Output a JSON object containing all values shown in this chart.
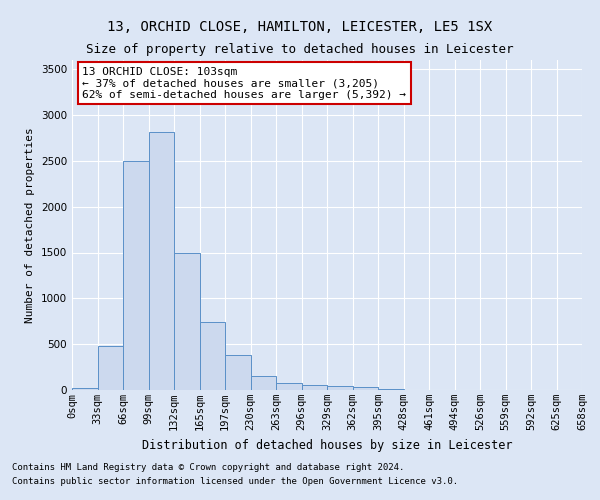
{
  "title1": "13, ORCHID CLOSE, HAMILTON, LEICESTER, LE5 1SX",
  "title2": "Size of property relative to detached houses in Leicester",
  "xlabel": "Distribution of detached houses by size in Leicester",
  "ylabel": "Number of detached properties",
  "bin_labels": [
    "0sqm",
    "33sqm",
    "66sqm",
    "99sqm",
    "132sqm",
    "165sqm",
    "197sqm",
    "230sqm",
    "263sqm",
    "296sqm",
    "329sqm",
    "362sqm",
    "395sqm",
    "428sqm",
    "461sqm",
    "494sqm",
    "526sqm",
    "559sqm",
    "592sqm",
    "625sqm",
    "658sqm"
  ],
  "bar_values": [
    20,
    480,
    2500,
    2820,
    1500,
    740,
    380,
    155,
    75,
    55,
    45,
    35,
    15,
    0,
    0,
    0,
    0,
    0,
    0,
    0
  ],
  "bar_color": "#ccd9ee",
  "bar_edge_color": "#5a90c8",
  "annotation_line1": "13 ORCHID CLOSE: 103sqm",
  "annotation_line2": "← 37% of detached houses are smaller (3,205)",
  "annotation_line3": "62% of semi-detached houses are larger (5,392) →",
  "annotation_box_color": "#ffffff",
  "annotation_box_edge_color": "#cc0000",
  "ylim": [
    0,
    3600
  ],
  "yticks": [
    0,
    500,
    1000,
    1500,
    2000,
    2500,
    3000,
    3500
  ],
  "background_color": "#dce6f5",
  "plot_background_color": "#dce6f5",
  "footer_line1": "Contains HM Land Registry data © Crown copyright and database right 2024.",
  "footer_line2": "Contains public sector information licensed under the Open Government Licence v3.0.",
  "title1_fontsize": 10,
  "title2_fontsize": 9,
  "xlabel_fontsize": 8.5,
  "ylabel_fontsize": 8,
  "tick_fontsize": 7.5,
  "footer_fontsize": 6.5,
  "annotation_fontsize": 8
}
